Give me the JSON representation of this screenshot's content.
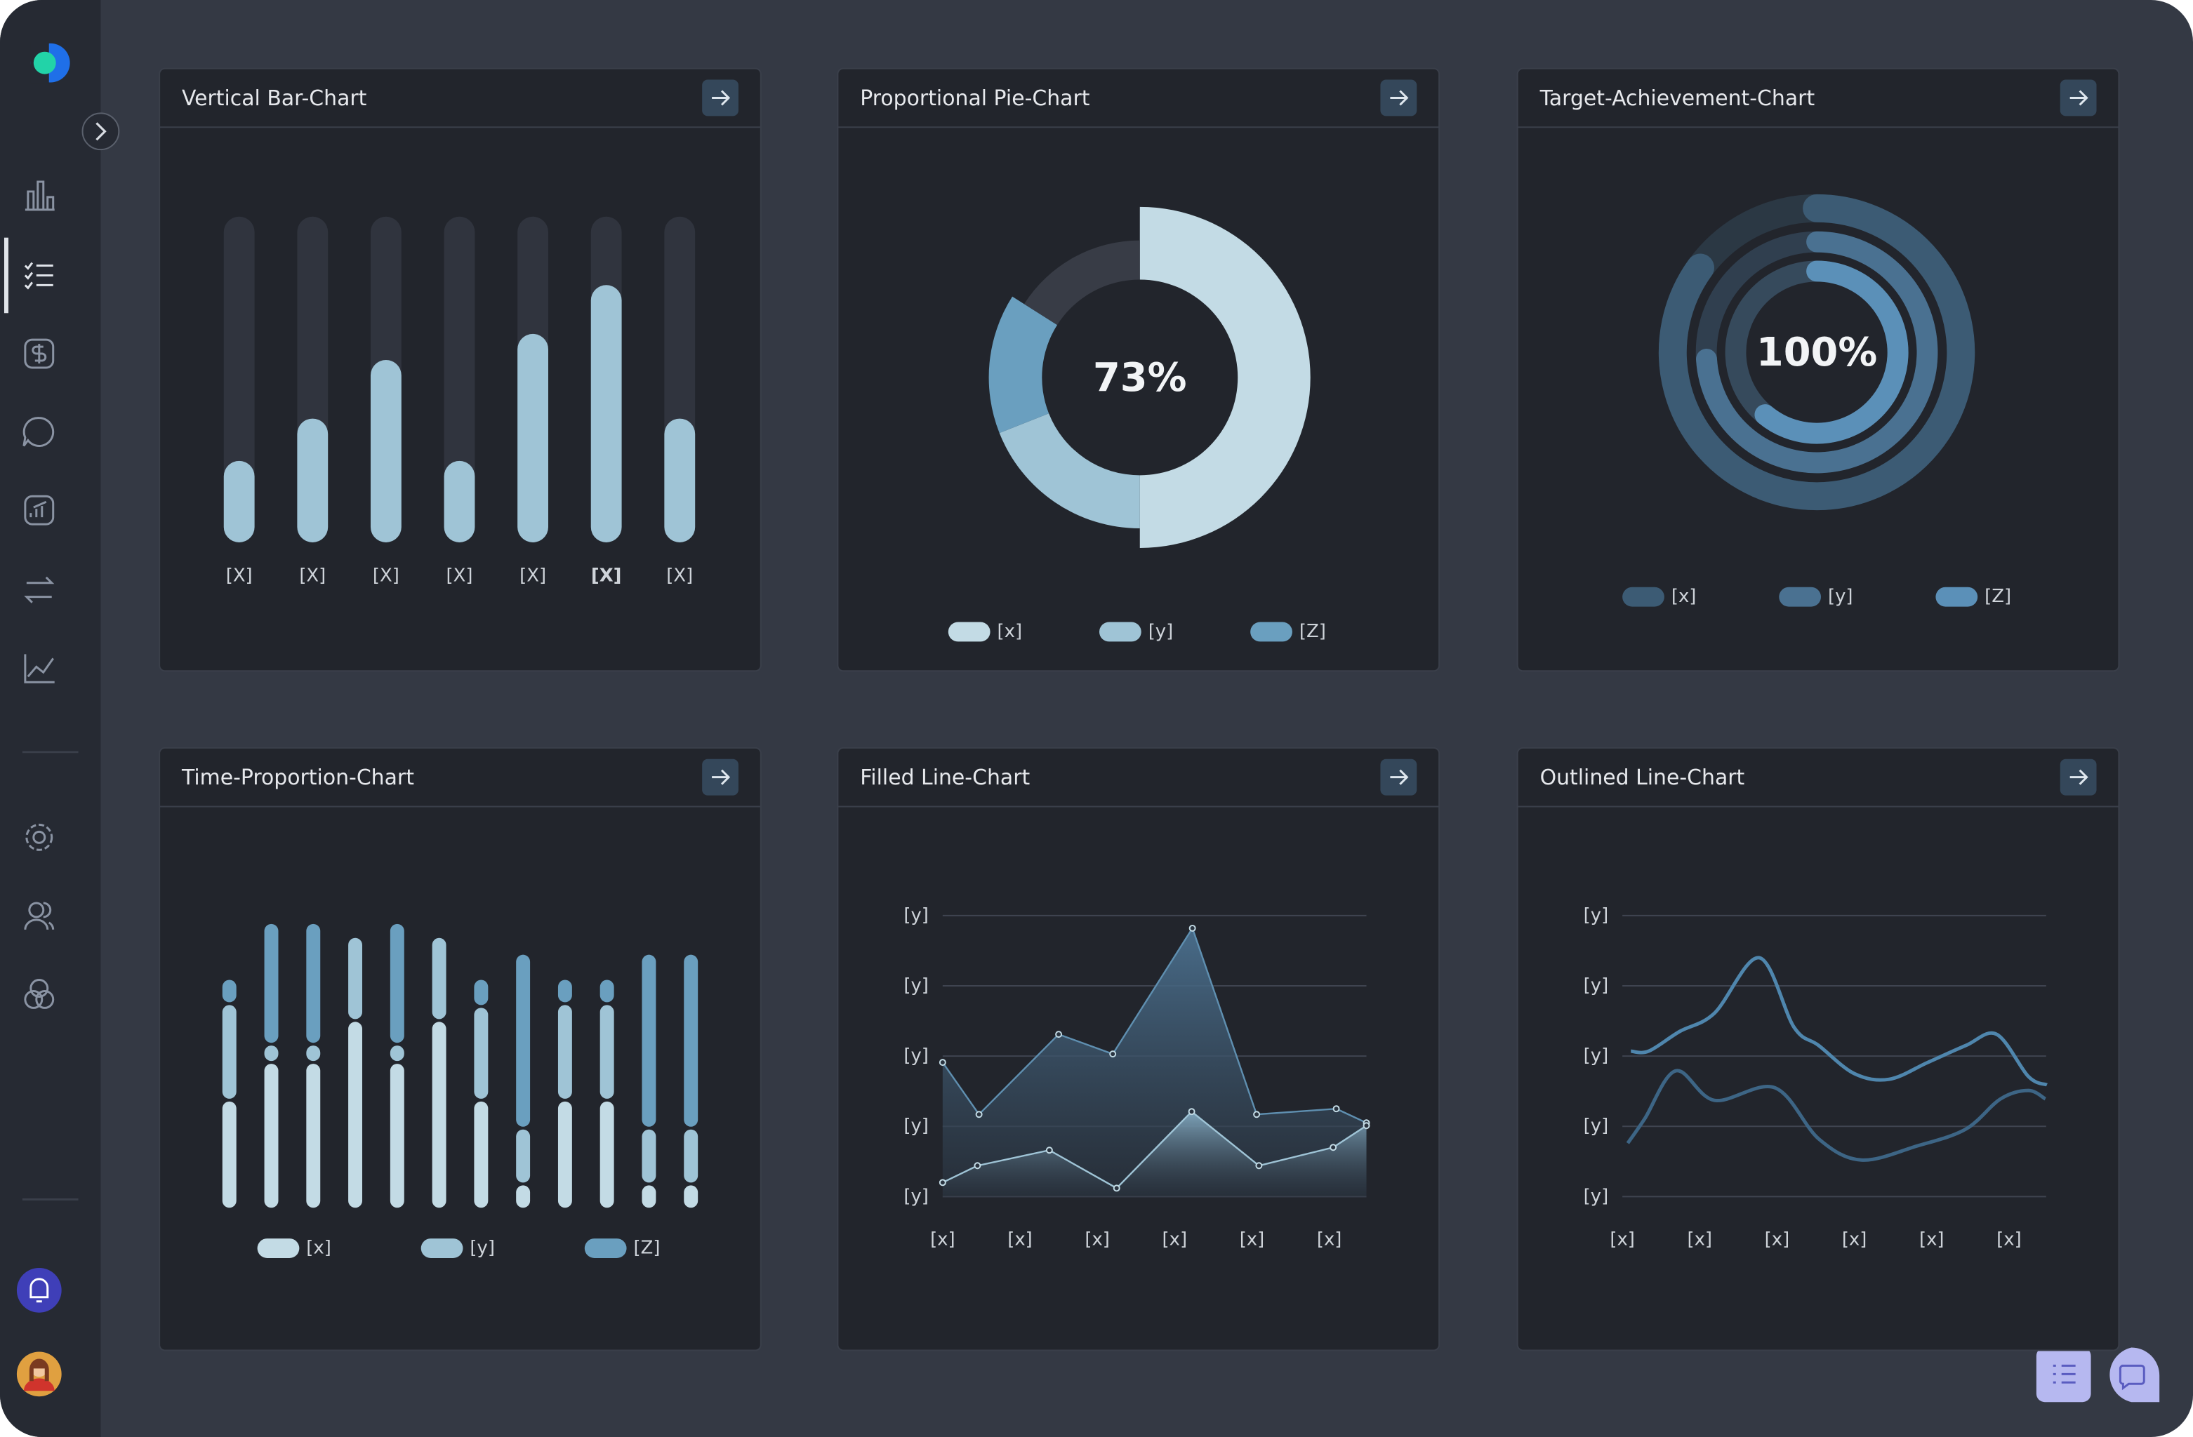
{
  "chart_data": [
    {
      "type": "bar",
      "title": "Vertical Bar-Chart",
      "categories": [
        "[X]",
        "[X]",
        "[X]",
        "[X]",
        "[X]",
        "[X]",
        "[X]"
      ],
      "values": [
        25,
        38,
        56,
        25,
        64,
        79,
        38
      ],
      "ylim": [
        0,
        100
      ],
      "color": "#9fc4d6",
      "track_color": "#30343e",
      "highlight": 5
    },
    {
      "type": "donut",
      "title": "Proportional Pie-Chart",
      "center_label": "73%",
      "categories": [
        "[x]",
        "[y]",
        "[Z]"
      ],
      "values": [
        50,
        19,
        15
      ],
      "ylim": [
        0,
        100
      ],
      "colors": [
        "#c3dbe5",
        "#9fc4d6",
        "#6a9fbf"
      ]
    },
    {
      "type": "rings",
      "title": "Target-Achievement-Chart",
      "center_label": "100%",
      "categories": [
        "[x]",
        "[y]",
        "[Z]"
      ],
      "values": [
        85,
        74,
        61
      ],
      "ylim": [
        0,
        100
      ],
      "colors": [
        "#3c5b74",
        "#4a7191",
        "#5b90b8"
      ]
    },
    {
      "type": "stacked_bar",
      "title": "Time-Proportion-Chart",
      "categories": [
        null,
        null,
        null,
        null,
        null,
        null,
        null,
        null,
        null,
        null,
        null,
        null
      ],
      "ylim": [
        0,
        210
      ],
      "series": [
        {
          "name": "[x]",
          "color": "#c3dbe5",
          "values": [
            78,
            105,
            105,
            135,
            105,
            135,
            78,
            18,
            78,
            78,
            18,
            18
          ]
        },
        {
          "name": "[y]",
          "color": "#9fc4d6",
          "values": [
            69,
            13,
            13,
            60,
            13,
            60,
            67,
            40,
            69,
            69,
            40,
            40
          ]
        },
        {
          "name": "[Z]",
          "color": "#6a9fbf",
          "values": [
            18,
            87,
            87,
            0,
            87,
            0,
            20,
            125,
            18,
            18,
            125,
            125
          ]
        }
      ]
    },
    {
      "type": "area",
      "title": "Filled Line-Chart",
      "grid": true,
      "xlim": [
        0,
        5.48
      ],
      "xticks": [
        {
          "value": 0,
          "label": "[x]"
        },
        {
          "value": 1,
          "label": "[x]"
        },
        {
          "value": 2,
          "label": "[x]"
        },
        {
          "value": 3,
          "label": "[x]"
        },
        {
          "value": 4,
          "label": "[x]"
        },
        {
          "value": 5,
          "label": "[x]"
        }
      ],
      "ylim": [
        0,
        4
      ],
      "yticks": [
        {
          "value": 0,
          "label": "[y]"
        },
        {
          "value": 1,
          "label": "[y]"
        },
        {
          "value": 2,
          "label": "[y]"
        },
        {
          "value": 3,
          "label": "[y]"
        },
        {
          "value": 4,
          "label": "[y]"
        }
      ],
      "series": [
        {
          "color": "#5f8fb0",
          "x": [
            0,
            0.47,
            1.5,
            2.2,
            3.23,
            4.06,
            5.09,
            5.48
          ],
          "values": [
            1.91,
            1.17,
            2.31,
            2.03,
            3.82,
            1.17,
            1.25,
            1.05
          ]
        },
        {
          "color": "#9fc4d6",
          "x": [
            0,
            0.45,
            1.38,
            2.25,
            3.22,
            4.09,
            5.05,
            5.48
          ],
          "values": [
            0.2,
            0.44,
            0.66,
            0.12,
            1.21,
            0.44,
            0.7,
            1.01
          ]
        }
      ]
    },
    {
      "type": "line",
      "title": "Outlined Line-Chart",
      "grid": true,
      "smooth": true,
      "xlim": [
        0,
        5.48
      ],
      "xticks": [
        {
          "value": 0,
          "label": "[x]"
        },
        {
          "value": 1,
          "label": "[x]"
        },
        {
          "value": 2,
          "label": "[x]"
        },
        {
          "value": 3,
          "label": "[x]"
        },
        {
          "value": 4,
          "label": "[x]"
        },
        {
          "value": 5,
          "label": "[x]"
        }
      ],
      "ylim": [
        0,
        4
      ],
      "yticks": [
        {
          "value": 0,
          "label": "[y]"
        },
        {
          "value": 1,
          "label": "[y]"
        },
        {
          "value": 2,
          "label": "[y]"
        },
        {
          "value": 3,
          "label": "[y]"
        },
        {
          "value": 4,
          "label": "[y]"
        }
      ],
      "series": [
        {
          "color": "#4f86ad",
          "x": [
            0.11,
            0.34,
            0.74,
            1.19,
            1.77,
            2.22,
            2.54,
            3.0,
            3.45,
            3.95,
            4.44,
            4.84,
            5.25,
            5.49
          ],
          "values": [
            2.07,
            2.07,
            2.35,
            2.61,
            3.4,
            2.41,
            2.15,
            1.75,
            1.67,
            1.91,
            2.15,
            2.31,
            1.71,
            1.59
          ]
        },
        {
          "color": "#3d6585",
          "x": [
            0.07,
            0.29,
            0.69,
            1.19,
            1.97,
            2.54,
            3.09,
            3.81,
            4.44,
            4.89,
            5.25,
            5.47
          ],
          "values": [
            0.76,
            1.11,
            1.79,
            1.37,
            1.55,
            0.82,
            0.52,
            0.72,
            0.96,
            1.39,
            1.51,
            1.39
          ]
        }
      ]
    }
  ]
}
